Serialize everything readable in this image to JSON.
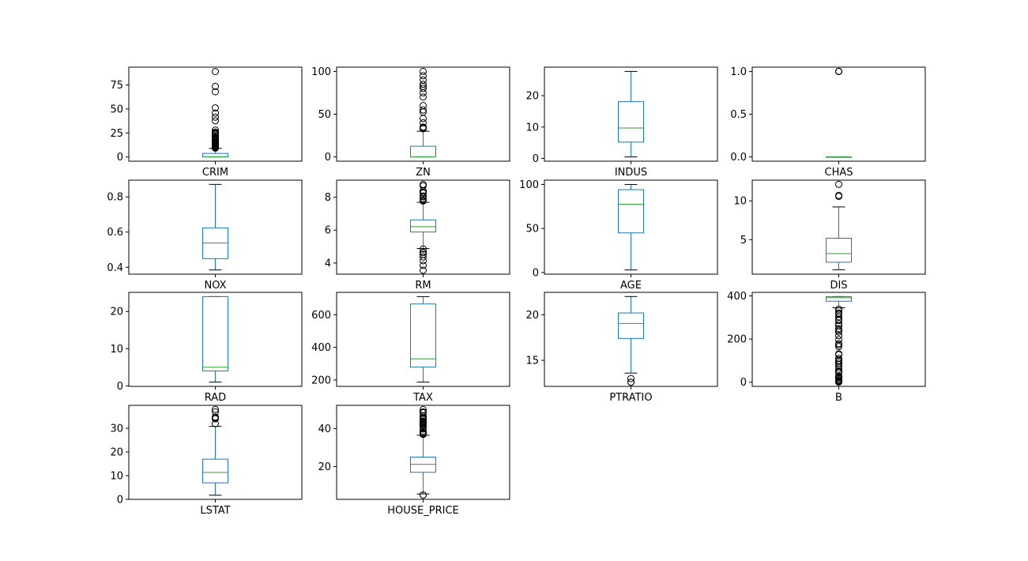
{
  "colors": {
    "box": "#1f77b4",
    "median": "#2ca02c",
    "whisker": "#000000",
    "flier": "#000000",
    "frame": "#000000",
    "background": "#ffffff"
  },
  "chart_data": [
    {
      "type": "box",
      "xlabel": "CRIM",
      "ylim": [
        -4.4,
        93.5
      ],
      "yticks": [
        0,
        25,
        50,
        75
      ],
      "box": {
        "q1": 0.08,
        "median": 0.26,
        "q3": 3.7,
        "whisker_low": 0.0,
        "whisker_high": 9.0
      },
      "outliers": [
        9.2,
        9.8,
        10.2,
        10.8,
        11.1,
        11.6,
        12.0,
        12.4,
        13.0,
        13.6,
        14.1,
        14.4,
        15.0,
        15.6,
        16.1,
        17.0,
        18.0,
        18.5,
        19.6,
        20.1,
        20.7,
        22.1,
        23.6,
        24.4,
        25.0,
        25.9,
        28.0,
        37.7,
        41.5,
        45.7,
        51.1,
        67.9,
        73.5,
        88.9
      ],
      "grid": false,
      "legend": "none"
    },
    {
      "type": "box",
      "xlabel": "ZN",
      "ylim": [
        -5,
        105
      ],
      "yticks": [
        0,
        50,
        100
      ],
      "box": {
        "q1": 0,
        "median": 0,
        "q3": 12.5,
        "whisker_low": 0,
        "whisker_high": 30
      },
      "outliers": [
        33,
        34,
        35,
        40,
        45,
        52.5,
        55,
        60,
        70,
        75,
        80,
        82.5,
        85,
        90,
        95,
        100
      ],
      "grid": false,
      "legend": "none"
    },
    {
      "type": "box",
      "xlabel": "INDUS",
      "ylim": [
        -0.9,
        29.1
      ],
      "yticks": [
        0,
        10,
        20
      ],
      "box": {
        "q1": 5.19,
        "median": 9.69,
        "q3": 18.1,
        "whisker_low": 0.46,
        "whisker_high": 27.74
      },
      "outliers": [],
      "grid": false,
      "legend": "none"
    },
    {
      "type": "box",
      "xlabel": "CHAS",
      "ylim": [
        -0.05,
        1.05
      ],
      "yticks": [
        0.0,
        0.5,
        1.0
      ],
      "box": {
        "q1": 0,
        "median": 0,
        "q3": 0,
        "whisker_low": 0,
        "whisker_high": 0
      },
      "outliers": [
        1,
        1,
        1
      ],
      "grid": false,
      "legend": "none"
    },
    {
      "type": "box",
      "xlabel": "NOX",
      "ylim": [
        0.361,
        0.895
      ],
      "yticks": [
        0.4,
        0.6,
        0.8
      ],
      "box": {
        "q1": 0.449,
        "median": 0.538,
        "q3": 0.624,
        "whisker_low": 0.385,
        "whisker_high": 0.871
      },
      "outliers": [],
      "grid": false,
      "legend": "none"
    },
    {
      "type": "box",
      "xlabel": "RM",
      "ylim": [
        3.32,
        9.04
      ],
      "yticks": [
        4,
        6,
        8
      ],
      "box": {
        "q1": 5.886,
        "median": 6.209,
        "q3": 6.624,
        "whisker_low": 4.88,
        "whisker_high": 7.69
      },
      "outliers": [
        3.56,
        3.86,
        4.14,
        4.37,
        4.52,
        4.63,
        4.65,
        4.85,
        7.77,
        7.82,
        7.92,
        8.03,
        8.07,
        8.25,
        8.3,
        8.4,
        8.7,
        8.78
      ],
      "grid": false,
      "legend": "none"
    },
    {
      "type": "box",
      "xlabel": "AGE",
      "ylim": [
        -1.9,
        104.9
      ],
      "yticks": [
        0,
        50,
        100
      ],
      "box": {
        "q1": 45.0,
        "median": 77.5,
        "q3": 94.1,
        "whisker_low": 2.9,
        "whisker_high": 100
      },
      "outliers": [],
      "grid": false,
      "legend": "none"
    },
    {
      "type": "box",
      "xlabel": "DIS",
      "ylim": [
        0.56,
        12.67
      ],
      "yticks": [
        5,
        10
      ],
      "box": {
        "q1": 2.1,
        "median": 3.2,
        "q3": 5.19,
        "whisker_low": 1.13,
        "whisker_high": 9.22
      },
      "outliers": [
        10.59,
        10.71,
        12.13
      ],
      "grid": false,
      "legend": "none"
    },
    {
      "type": "box",
      "xlabel": "RAD",
      "ylim": [
        -0.15,
        25.15
      ],
      "yticks": [
        0,
        10,
        20
      ],
      "box": {
        "q1": 4,
        "median": 5,
        "q3": 24,
        "whisker_low": 1,
        "whisker_high": 24
      },
      "outliers": [],
      "grid": false,
      "legend": "none"
    },
    {
      "type": "box",
      "xlabel": "TAX",
      "ylim": [
        160.8,
        737.2
      ],
      "yticks": [
        200,
        400,
        600
      ],
      "box": {
        "q1": 279,
        "median": 330,
        "q3": 666,
        "whisker_low": 187,
        "whisker_high": 711
      },
      "outliers": [],
      "grid": false,
      "legend": "none"
    },
    {
      "type": "box",
      "xlabel": "PTRATIO",
      "ylim": [
        12.14,
        22.46
      ],
      "yticks": [
        15,
        20
      ],
      "box": {
        "q1": 17.4,
        "median": 19.05,
        "q3": 20.2,
        "whisker_low": 13.6,
        "whisker_high": 22.0
      },
      "outliers": [
        12.6,
        12.6,
        13.0
      ],
      "grid": false,
      "legend": "none"
    },
    {
      "type": "box",
      "xlabel": "B",
      "ylim": [
        -19.5,
        416.5
      ],
      "yticks": [
        0,
        200,
        400
      ],
      "box": {
        "q1": 375.4,
        "median": 391.4,
        "q3": 396.2,
        "whisker_low": 344.9,
        "whisker_high": 396.9
      },
      "outliers": [
        0.3,
        3.5,
        6.7,
        10.5,
        16.4,
        21.6,
        24.6,
        27.5,
        43.1,
        48.5,
        50.9,
        60.7,
        70.8,
        81.3,
        88.6,
        96.7,
        100.2,
        109.9,
        127.4,
        131.4,
        164.9,
        172.9,
        178.6,
        196.9,
        215.6,
        232.6,
        240.5,
        248.3,
        261.9,
        272.2,
        285.8,
        291.6,
        302.8,
        316.0,
        321.0,
        331.3,
        338.6
      ],
      "grid": false,
      "legend": "none"
    },
    {
      "type": "box",
      "xlabel": "LSTAT",
      "ylim": [
        -0.03,
        39.7
      ],
      "yticks": [
        0,
        10,
        20,
        30
      ],
      "box": {
        "q1": 6.95,
        "median": 11.36,
        "q3": 16.96,
        "whisker_low": 1.73,
        "whisker_high": 30.81
      },
      "outliers": [
        31.99,
        34.02,
        34.37,
        34.41,
        34.77,
        36.98,
        37.97
      ],
      "grid": false,
      "legend": "none"
    },
    {
      "type": "box",
      "xlabel": "HOUSE_PRICE",
      "ylim": [
        2.75,
        52.25
      ],
      "yticks": [
        20,
        40
      ],
      "box": {
        "q1": 17.0,
        "median": 21.2,
        "q3": 25.0,
        "whisker_low": 5.6,
        "whisker_high": 36.5
      },
      "outliers": [
        5.0,
        5.0,
        37.0,
        37.2,
        37.3,
        37.6,
        37.9,
        38.7,
        39.8,
        41.3,
        41.7,
        42.3,
        42.8,
        43.1,
        43.5,
        43.8,
        44.0,
        44.8,
        45.4,
        46.0,
        46.7,
        48.3,
        48.5,
        48.8,
        50.0
      ]
    }
  ]
}
